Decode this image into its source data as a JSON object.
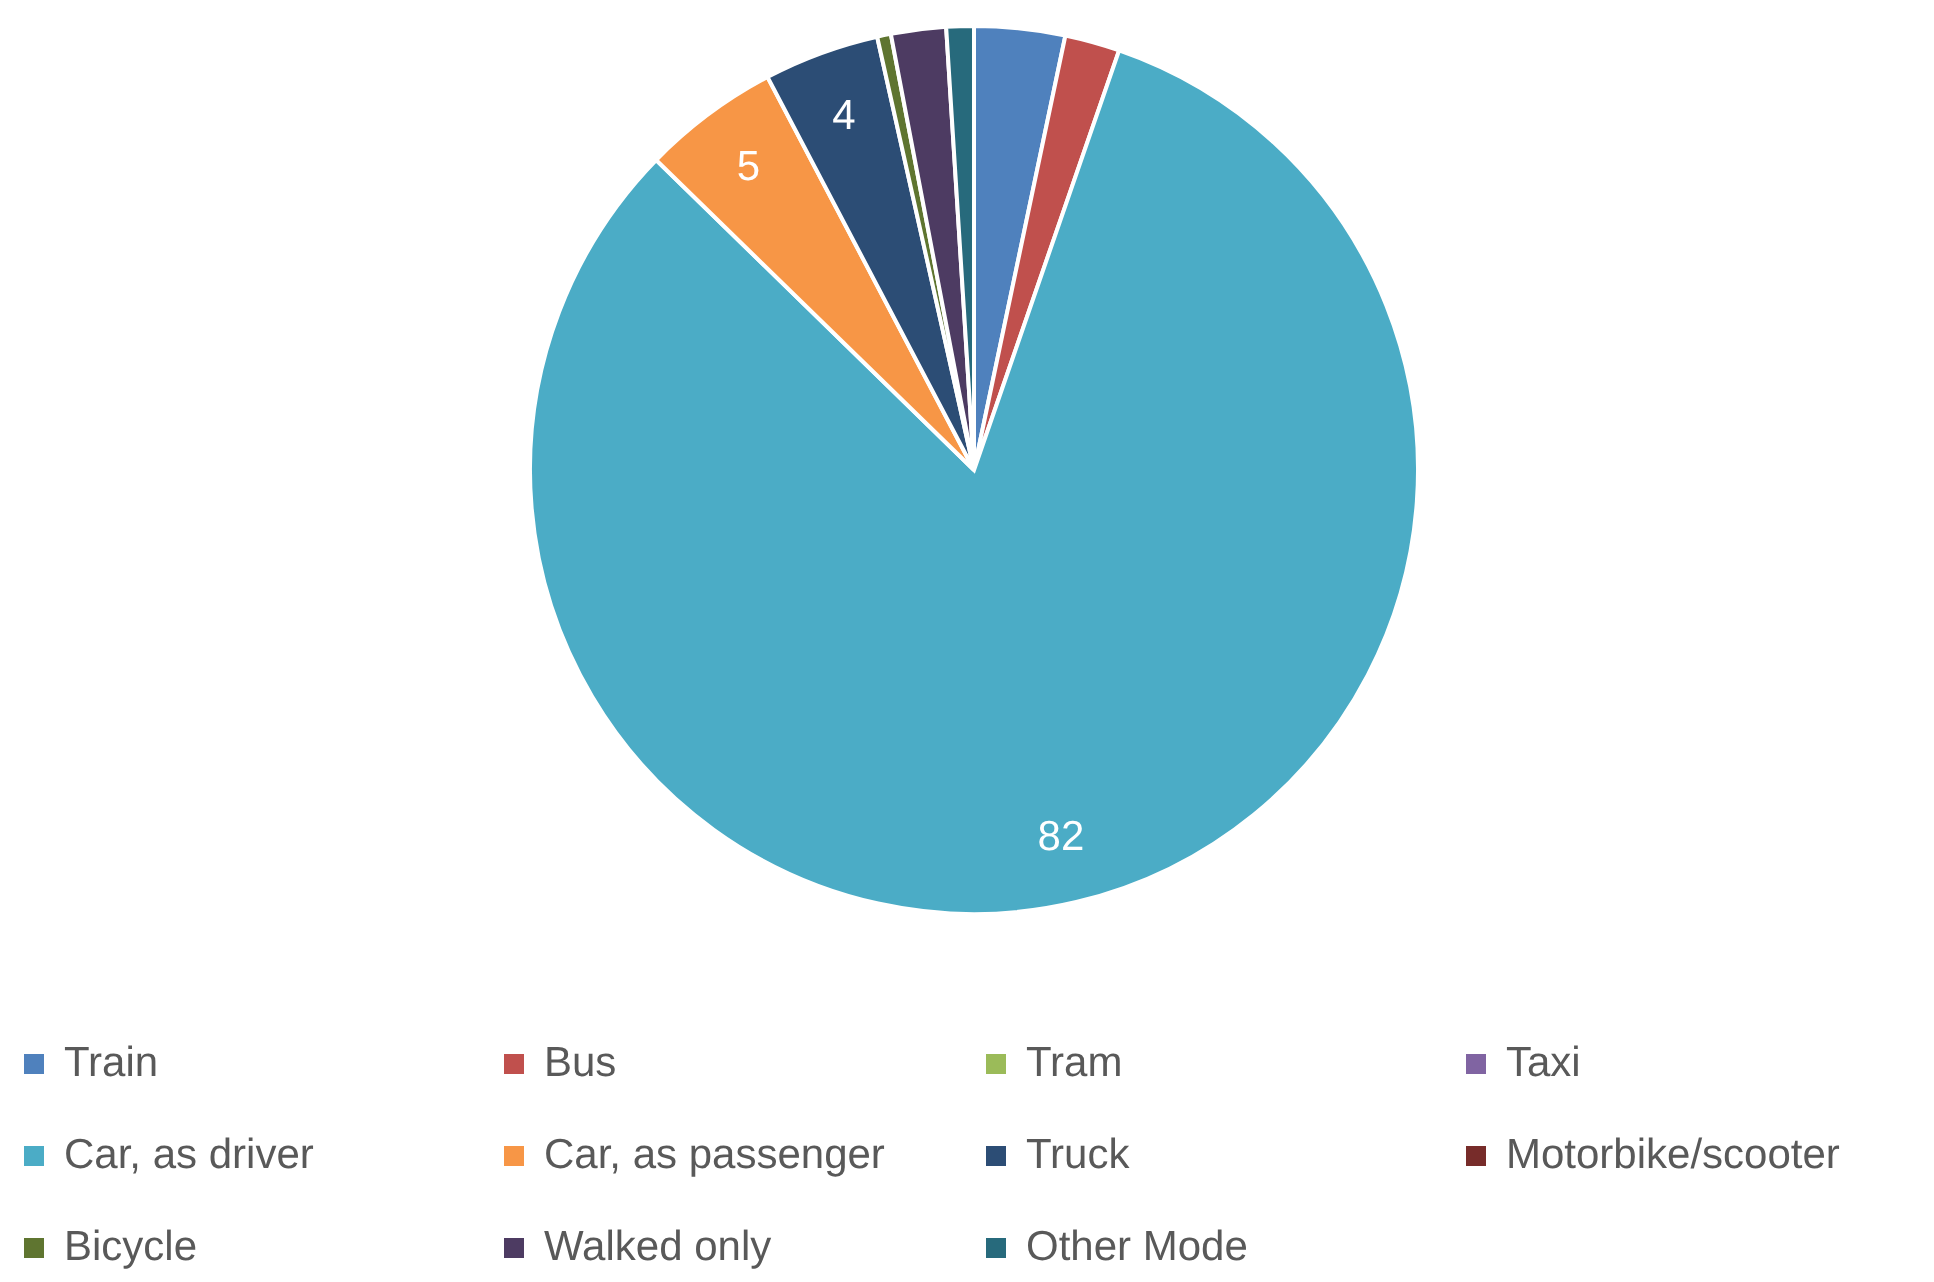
{
  "chart_data": {
    "type": "pie",
    "categories": [
      "Train",
      "Bus",
      "Tram",
      "Taxi",
      "Car, as driver",
      "Car, as passenger",
      "Truck",
      "Motorbike/scooter",
      "Bicycle",
      "Walked only",
      "Other Mode"
    ],
    "values": [
      3.3,
      2,
      0,
      0,
      82,
      5,
      4.2,
      0,
      0.5,
      2,
      1
    ],
    "colors": [
      "#4f81bd",
      "#c0504d",
      "#9bbb59",
      "#8064a2",
      "#4bacc6",
      "#f79646",
      "#2c4d75",
      "#772c2a",
      "#5f7530",
      "#4d3b62",
      "#276a7c"
    ],
    "value_labels": [
      null,
      null,
      null,
      null,
      "82",
      "5",
      "4",
      null,
      null,
      null,
      null
    ],
    "legend": "bottom"
  }
}
